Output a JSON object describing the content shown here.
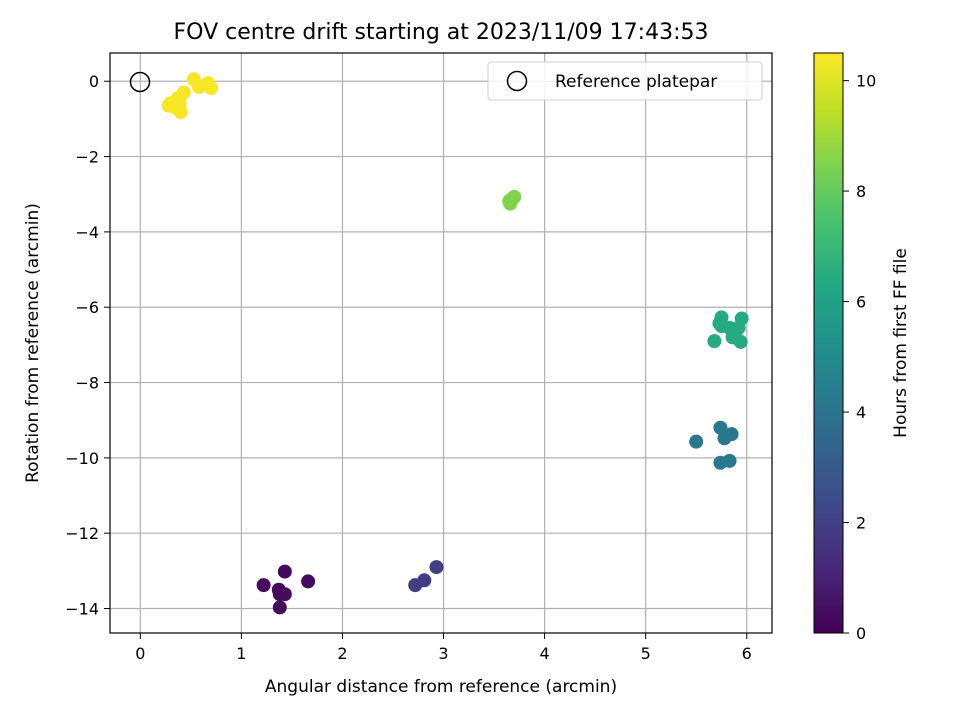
{
  "chart_data": {
    "type": "scatter",
    "title": "FOV centre drift starting at 2023/11/09 17:43:53",
    "xlabel": "Angular distance from reference (arcmin)",
    "ylabel": "Rotation from reference (arcmin)",
    "xlim": [
      -0.3,
      6.25
    ],
    "ylim": [
      -14.65,
      0.75
    ],
    "xticks": [
      0,
      1,
      2,
      3,
      4,
      5,
      6
    ],
    "yticks": [
      0,
      -2,
      -4,
      -6,
      -8,
      -10,
      -12,
      -14
    ],
    "grid": true,
    "legend": {
      "position": "top-right",
      "entries": [
        "Reference platepar"
      ]
    },
    "reference_point": {
      "x": 0,
      "y": 0
    },
    "colorbar": {
      "label": "Hours from first FF file",
      "range": [
        0,
        10.5
      ],
      "ticks": [
        0,
        2,
        4,
        6,
        8,
        10
      ],
      "colormap": "viridis"
    },
    "points": [
      {
        "x": 1.22,
        "y": -13.38,
        "h": 0.3
      },
      {
        "x": 1.37,
        "y": -13.5,
        "h": 0.3
      },
      {
        "x": 1.43,
        "y": -13.02,
        "h": 0.3
      },
      {
        "x": 1.38,
        "y": -13.62,
        "h": 0.3
      },
      {
        "x": 1.43,
        "y": -13.62,
        "h": 0.3
      },
      {
        "x": 1.38,
        "y": -13.97,
        "h": 0.3
      },
      {
        "x": 1.66,
        "y": -13.28,
        "h": 0.3
      },
      {
        "x": 2.72,
        "y": -13.38,
        "h": 1.9
      },
      {
        "x": 2.81,
        "y": -13.25,
        "h": 1.9
      },
      {
        "x": 2.93,
        "y": -12.9,
        "h": 1.9
      },
      {
        "x": 5.5,
        "y": -9.57,
        "h": 4.2
      },
      {
        "x": 5.74,
        "y": -9.2,
        "h": 4.2
      },
      {
        "x": 5.78,
        "y": -9.48,
        "h": 4.2
      },
      {
        "x": 5.85,
        "y": -9.37,
        "h": 4.2
      },
      {
        "x": 5.74,
        "y": -10.13,
        "h": 4.2
      },
      {
        "x": 5.83,
        "y": -10.08,
        "h": 4.2
      },
      {
        "x": 5.68,
        "y": -6.9,
        "h": 6.4
      },
      {
        "x": 5.73,
        "y": -6.43,
        "h": 6.4
      },
      {
        "x": 5.75,
        "y": -6.27,
        "h": 6.4
      },
      {
        "x": 5.75,
        "y": -6.5,
        "h": 6.4
      },
      {
        "x": 5.83,
        "y": -6.55,
        "h": 6.4
      },
      {
        "x": 5.86,
        "y": -6.8,
        "h": 6.4
      },
      {
        "x": 5.89,
        "y": -6.65,
        "h": 6.4
      },
      {
        "x": 5.92,
        "y": -6.55,
        "h": 6.4
      },
      {
        "x": 5.95,
        "y": -6.3,
        "h": 6.4
      },
      {
        "x": 5.94,
        "y": -6.92,
        "h": 6.4
      },
      {
        "x": 3.65,
        "y": -3.18,
        "h": 8.5
      },
      {
        "x": 3.68,
        "y": -3.12,
        "h": 8.5
      },
      {
        "x": 3.66,
        "y": -3.25,
        "h": 8.5
      },
      {
        "x": 3.7,
        "y": -3.07,
        "h": 8.5
      },
      {
        "x": 0.53,
        "y": 0.05,
        "h": 10.4
      },
      {
        "x": 0.58,
        "y": -0.15,
        "h": 10.4
      },
      {
        "x": 0.67,
        "y": -0.05,
        "h": 10.4
      },
      {
        "x": 0.7,
        "y": -0.18,
        "h": 10.4
      },
      {
        "x": 0.43,
        "y": -0.3,
        "h": 10.4
      },
      {
        "x": 0.37,
        "y": -0.45,
        "h": 10.4
      },
      {
        "x": 0.3,
        "y": -0.58,
        "h": 10.4
      },
      {
        "x": 0.28,
        "y": -0.65,
        "h": 10.4
      },
      {
        "x": 0.35,
        "y": -0.7,
        "h": 10.4
      },
      {
        "x": 0.4,
        "y": -0.82,
        "h": 10.4
      },
      {
        "x": 0.39,
        "y": -0.58,
        "h": 10.4
      }
    ]
  }
}
